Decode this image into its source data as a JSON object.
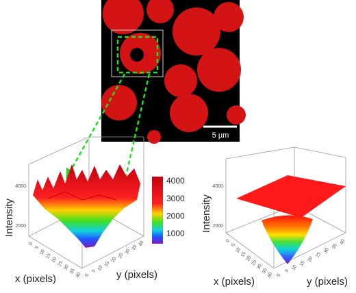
{
  "micrograph": {
    "scale_bar": "5 µm"
  },
  "left_plot": {
    "z_label": "Intensity",
    "x_label": "x (pixels)",
    "y_label": "y (pixels)",
    "z_ticks": [
      4000,
      2000
    ],
    "x_ticks": [
      0,
      5,
      10,
      15,
      20,
      25,
      30,
      35,
      40
    ],
    "y_ticks": [
      0,
      5,
      10,
      15,
      20,
      25,
      30,
      35,
      40
    ]
  },
  "colorbar": {
    "ticks": [
      4000,
      3000,
      2000,
      1000
    ]
  },
  "right_plot": {
    "z_label": "Intensity",
    "x_label": "x (pixels)",
    "y_label": "y (pixels)",
    "z_ticks": [
      4000,
      2000
    ],
    "x_ticks": [
      0,
      5,
      10,
      15,
      20,
      25,
      30,
      35,
      40
    ],
    "y_ticks": [
      0,
      5,
      10,
      15,
      20,
      25,
      30,
      35,
      40
    ]
  }
}
